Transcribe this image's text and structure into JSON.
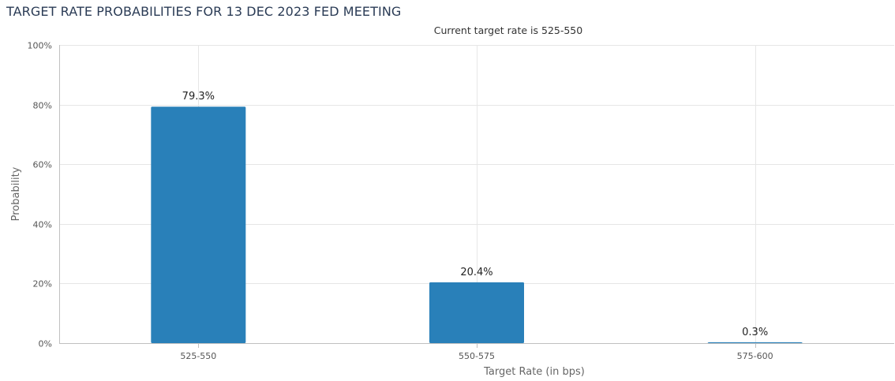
{
  "chart_data": {
    "type": "bar",
    "title": "TARGET RATE PROBABILITIES FOR 13 DEC 2023 FED MEETING",
    "subtitle": "Current target rate is 525-550",
    "xlabel": "Target Rate (in bps)",
    "ylabel": "Probability",
    "categories": [
      "525-550",
      "550-575",
      "575-600"
    ],
    "values": [
      79.3,
      20.4,
      0.3
    ],
    "data_labels": [
      "79.3%",
      "20.4%",
      "0.3%"
    ],
    "ylim": [
      0,
      100
    ],
    "yticks": [
      0,
      20,
      40,
      60,
      80,
      100
    ],
    "ytick_labels": [
      "0%",
      "20%",
      "40%",
      "60%",
      "80%",
      "100%"
    ],
    "grid": true,
    "legend": "none",
    "bar_color": "#2980b9",
    "grid_color": "#e6e6e6",
    "axis_color": "#c0c0c0"
  }
}
